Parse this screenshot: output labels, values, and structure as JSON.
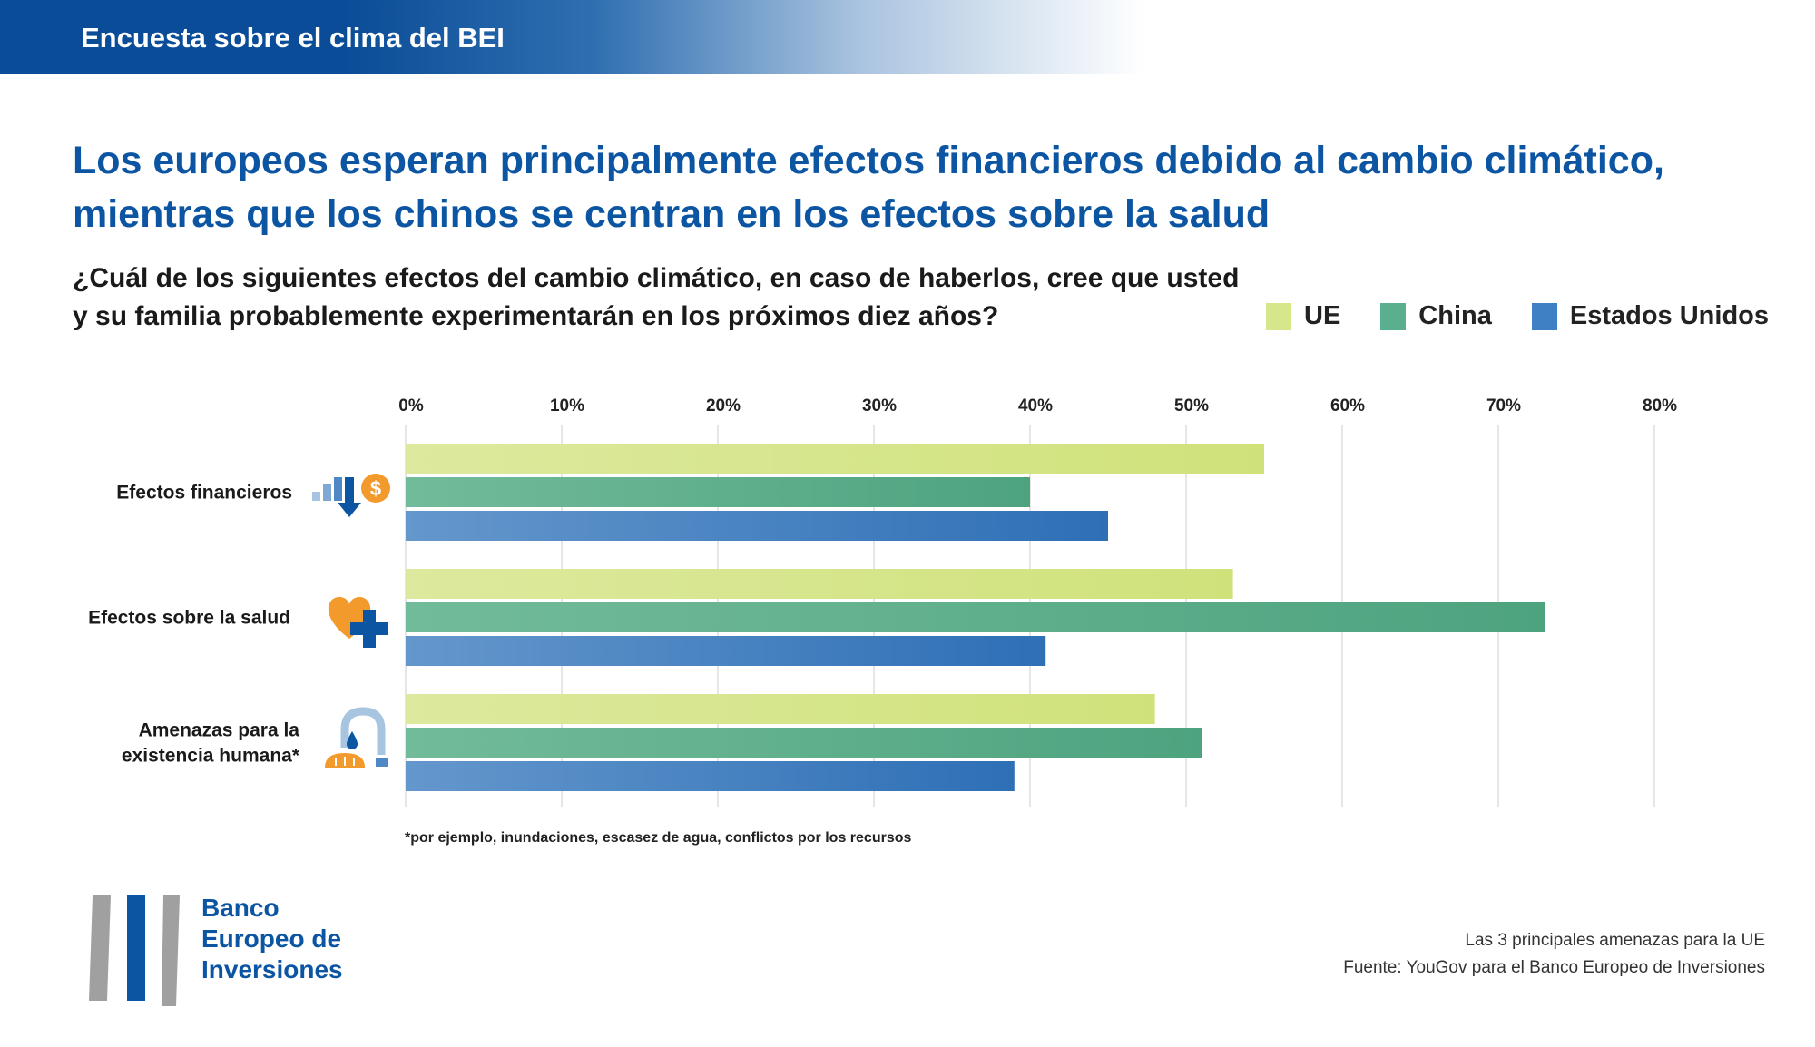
{
  "header": {
    "text": "Encuesta sobre el clima del BEI"
  },
  "title": "Los europeos esperan principalmente efectos financieros debido al cambio climático, mientras que los chinos se centran en los efectos sobre la salud",
  "question": "¿Cuál de los siguientes efectos del cambio climático, en caso de haberlos, cree que usted y su familia probablemente experimentarán en los próximos diez años?",
  "legend": [
    {
      "label": "UE",
      "color": "#d6e68a"
    },
    {
      "label": "China",
      "color": "#5ab08e"
    },
    {
      "label": "Estados Unidos",
      "color": "#3f7fc4"
    }
  ],
  "chart_data": {
    "type": "bar",
    "orientation": "horizontal",
    "categories": [
      "Efectos financieros",
      "Efectos sobre la salud",
      "Amenazas para la existencia humana*"
    ],
    "category_icons": [
      "finance-icon",
      "health-icon",
      "water-food-icon"
    ],
    "series": [
      {
        "name": "UE",
        "values": [
          55,
          53,
          48
        ],
        "color_start": "#dde99e",
        "color_end": "#cfe27a"
      },
      {
        "name": "China",
        "values": [
          40,
          73,
          51
        ],
        "color_start": "#72bb9a",
        "color_end": "#4ea37f"
      },
      {
        "name": "Estados Unidos",
        "values": [
          45,
          41,
          39
        ],
        "color_start": "#6497cc",
        "color_end": "#2e6fb6"
      }
    ],
    "xlim": [
      0,
      80
    ],
    "ticks": [
      "0%",
      "10%",
      "20%",
      "30%",
      "40%",
      "50%",
      "60%",
      "70%",
      "80%"
    ],
    "grid": true,
    "legend_position": "top-right"
  },
  "footnote": "*por ejemplo, inundaciones, escasez de agua, conflictos por los recursos",
  "logo": {
    "lines": [
      "Banco",
      "Europeo de",
      "Inversiones"
    ]
  },
  "source": {
    "line1": "Las 3 principales amenazas para la UE",
    "line2": "Fuente: YouGov para el Banco Europeo de Inversiones"
  }
}
